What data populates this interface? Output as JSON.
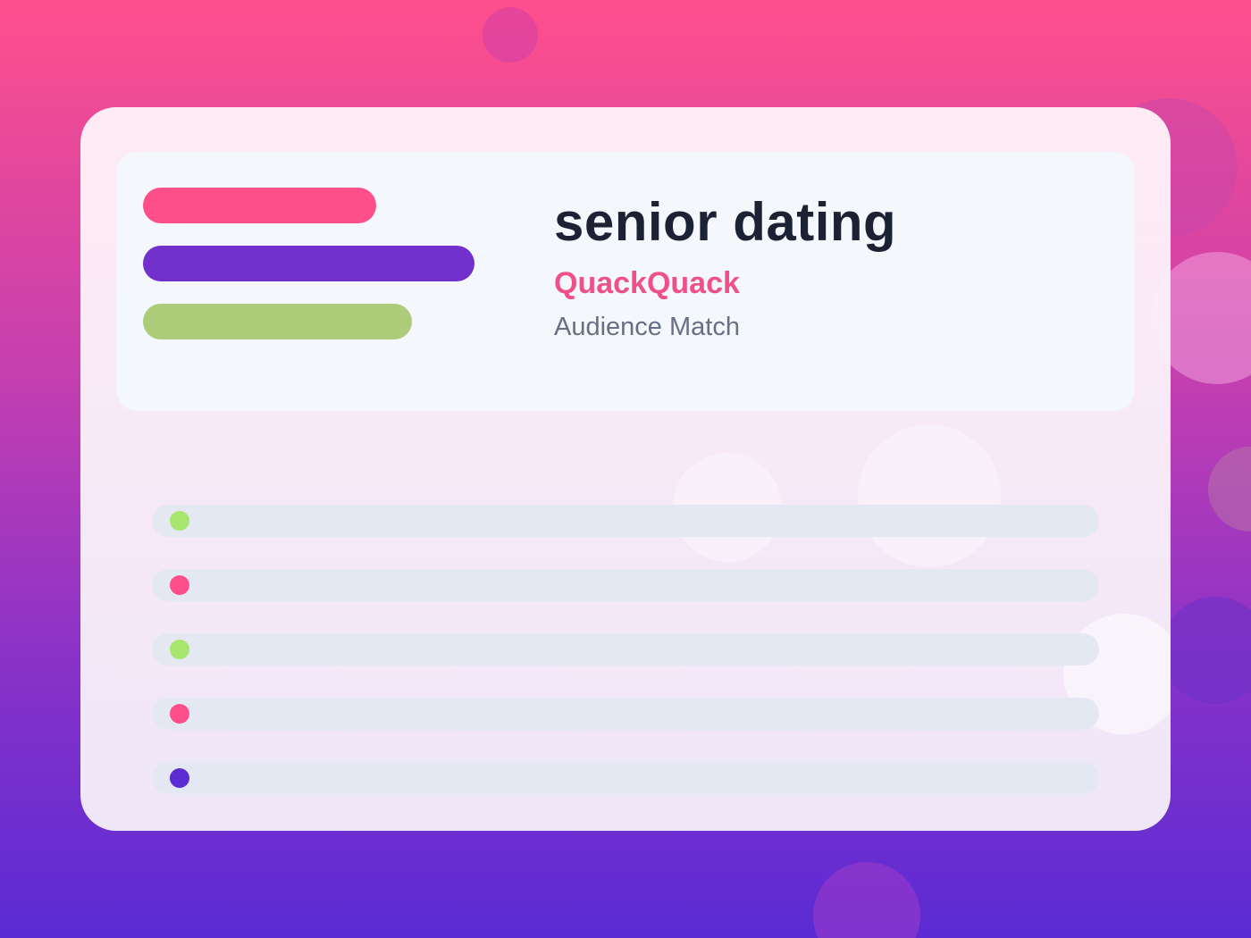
{
  "header": {
    "title": "senior dating",
    "brand": "QuackQuack",
    "subtitle": "Audience Match"
  }
}
